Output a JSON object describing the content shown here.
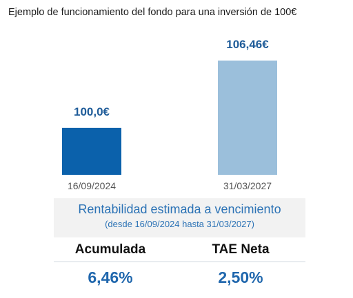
{
  "title": "Ejemplo de funcionamiento del fondo para una inversión de 100€",
  "chart_data": {
    "type": "bar",
    "categories": [
      "16/09/2024",
      "31/03/2027"
    ],
    "values": [
      100.0,
      106.46
    ],
    "value_labels": [
      "100,0€",
      "106,46€"
    ],
    "colors": [
      "#0b61ab",
      "#9bbfdb"
    ],
    "ylim": [
      95.5,
      106.46
    ],
    "grid": false
  },
  "summary": {
    "title": "Rentabilidad estimada a vencimiento",
    "subtitle": "(desde 16/09/2024 hasta 31/03/2027)",
    "labels": [
      "Acumulada",
      "TAE Neta"
    ],
    "values": [
      "6,46%",
      "2,50%"
    ]
  }
}
